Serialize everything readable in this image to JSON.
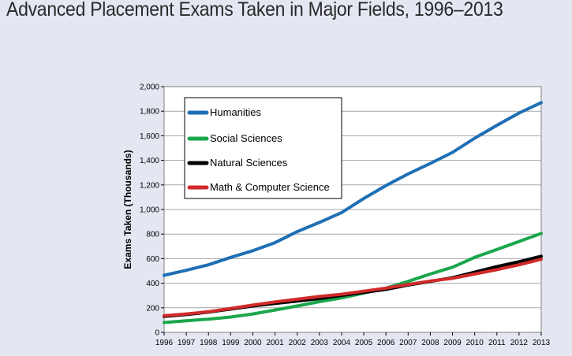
{
  "chart_data": {
    "type": "line",
    "title": "Advanced Placement Exams Taken in Major Fields, 1996–2013",
    "xlabel": "",
    "ylabel": "Exams Taken (Thousands)",
    "x": [
      1996,
      1997,
      1998,
      1999,
      2000,
      2001,
      2002,
      2003,
      2004,
      2005,
      2006,
      2007,
      2008,
      2009,
      2010,
      2011,
      2012,
      2013
    ],
    "x_tick_labels": [
      "1996",
      "1997",
      "1998",
      "1999",
      "2000",
      "2001",
      "2002",
      "2003",
      "2004",
      "2005",
      "2006",
      "2007",
      "2008",
      "2009",
      "2010",
      "2011",
      "2012",
      "2013"
    ],
    "ylim": [
      0,
      2000
    ],
    "y_ticks": [
      0,
      200,
      400,
      600,
      800,
      1000,
      1200,
      1400,
      1600,
      1800,
      2000
    ],
    "y_tick_labels": [
      "0",
      "200",
      "400",
      "600",
      "800",
      "1,000",
      "1,200",
      "1,400",
      "1,600",
      "1,800",
      "2,000"
    ],
    "grid": "horizontal",
    "legend_position": "top-left",
    "series": [
      {
        "name": "Humanities",
        "color": "#1f6fb5",
        "values": [
          465,
          505,
          550,
          610,
          665,
          730,
          820,
          895,
          975,
          1090,
          1195,
          1290,
          1375,
          1465,
          1580,
          1685,
          1785,
          1870
        ]
      },
      {
        "name": "Social Sciences",
        "color": "#1aa64b",
        "values": [
          80,
          95,
          108,
          125,
          150,
          182,
          215,
          250,
          280,
          320,
          360,
          415,
          475,
          530,
          610,
          675,
          740,
          805
        ]
      },
      {
        "name": "Natural Sciences",
        "color": "#000000",
        "values": [
          130,
          145,
          165,
          190,
          215,
          235,
          255,
          275,
          300,
          325,
          350,
          385,
          415,
          445,
          490,
          535,
          575,
          620
        ]
      },
      {
        "name": "Math & Computer Science",
        "color": "#d12a2a",
        "values": [
          135,
          150,
          168,
          195,
          222,
          248,
          270,
          292,
          310,
          335,
          360,
          390,
          418,
          440,
          475,
          510,
          550,
          595
        ]
      }
    ]
  }
}
